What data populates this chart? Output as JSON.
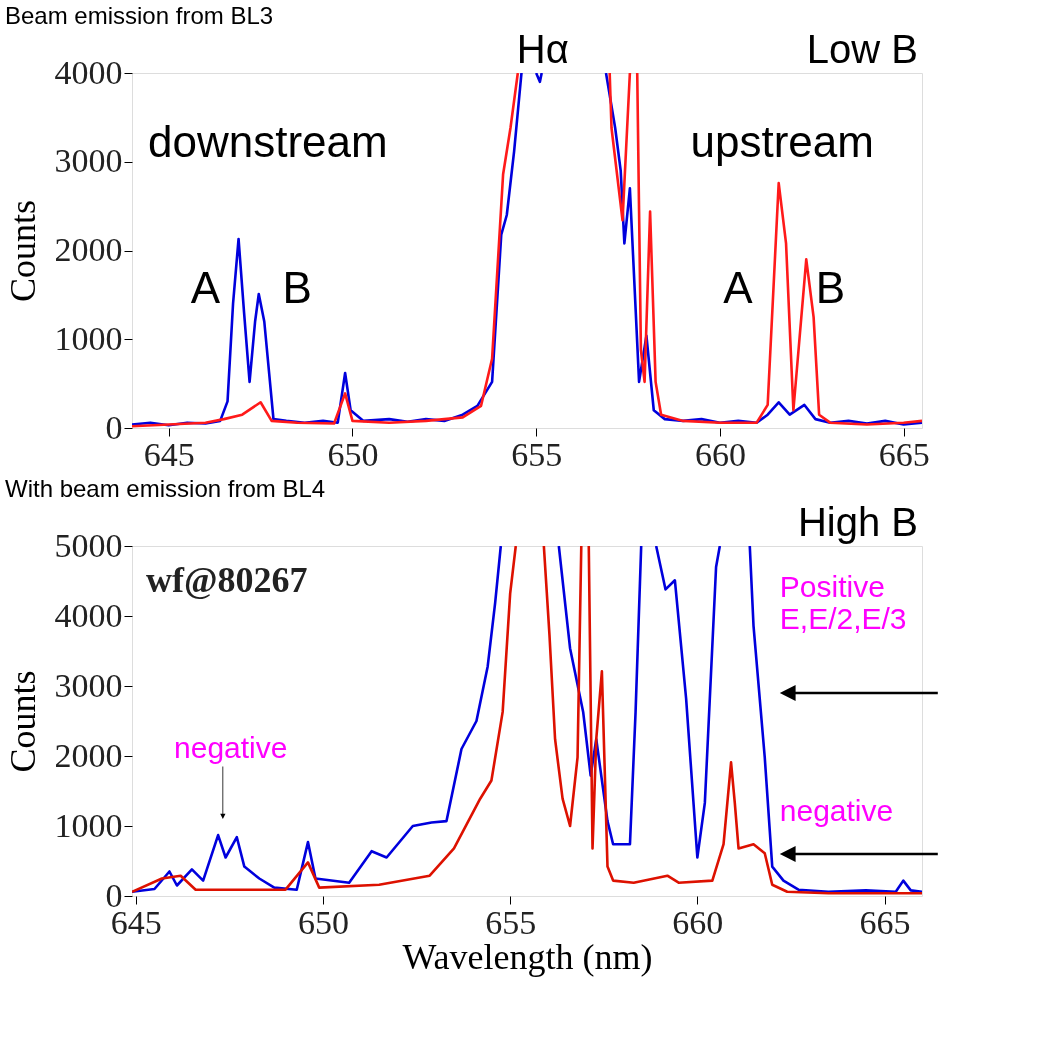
{
  "chart_data": [
    {
      "type": "line",
      "title": "Beam emission from BL3",
      "ylabel": "Counts",
      "xlim": [
        644,
        665.5
      ],
      "ylim": [
        0,
        4000
      ],
      "xticks": [
        645,
        650,
        655,
        660,
        665
      ],
      "yticks": [
        0,
        1000,
        2000,
        3000,
        4000
      ],
      "grid": false,
      "annotations": [
        "Hα",
        "Low B",
        "downstream",
        "upstream",
        "A",
        "B",
        "A",
        "B"
      ],
      "series": [
        {
          "color": "#0000dd",
          "x": [
            644.0,
            644.5,
            645.0,
            645.5,
            646.0,
            646.4,
            646.6,
            646.75,
            646.9,
            647.05,
            647.2,
            647.35,
            647.45,
            647.6,
            647.85,
            648.2,
            648.7,
            649.2,
            649.6,
            649.8,
            649.95,
            650.3,
            651.0,
            651.5,
            652.0,
            652.5,
            653.0,
            653.4,
            653.8,
            654.05,
            654.2,
            654.4,
            654.6,
            654.8,
            655.0,
            655.1,
            655.15,
            655.5,
            656.9,
            657.15,
            657.3,
            657.4,
            657.55,
            657.8,
            658.0,
            658.2,
            658.5,
            659.0,
            659.5,
            660.0,
            660.5,
            661.0,
            661.3,
            661.6,
            661.9,
            662.3,
            662.6,
            663.0,
            663.5,
            664.0,
            664.5,
            665.0,
            665.5
          ],
          "values": [
            40,
            60,
            30,
            60,
            50,
            80,
            300,
            1400,
            2130,
            1300,
            520,
            1200,
            1510,
            1200,
            100,
            80,
            60,
            80,
            60,
            620,
            200,
            80,
            100,
            70,
            100,
            80,
            150,
            250,
            520,
            2180,
            2400,
            3120,
            4000,
            null,
            4000,
            3900,
            4000,
            null,
            4000,
            3380,
            2900,
            2080,
            2700,
            520,
            1040,
            200,
            100,
            80,
            100,
            60,
            80,
            60,
            150,
            290,
            150,
            260,
            100,
            60,
            80,
            50,
            80,
            40,
            60
          ]
        },
        {
          "color": "#ff1a1a",
          "x": [
            644.0,
            645.0,
            646.0,
            646.5,
            647.0,
            647.5,
            647.8,
            648.5,
            649.5,
            649.8,
            650.0,
            651.0,
            652.0,
            653.0,
            653.5,
            653.8,
            654.1,
            654.3,
            654.5,
            655.0,
            657.0,
            657.05,
            657.35,
            657.55,
            657.6,
            657.75,
            657.8,
            657.85,
            657.95,
            658.1,
            658.25,
            658.4,
            659.0,
            660.0,
            661.0,
            661.3,
            661.6,
            661.8,
            662.0,
            662.35,
            662.55,
            662.7,
            663.0,
            664.0,
            665.0,
            665.5
          ],
          "values": [
            20,
            40,
            60,
            100,
            150,
            290,
            80,
            60,
            50,
            390,
            80,
            60,
            80,
            120,
            250,
            780,
            2860,
            3380,
            4000,
            null,
            4000,
            3380,
            2340,
            4000,
            null,
            4000,
            2440,
            880,
            520,
            2440,
            520,
            150,
            80,
            60,
            60,
            260,
            2760,
            2080,
            200,
            1900,
            1250,
            150,
            60,
            40,
            60,
            80
          ]
        }
      ]
    },
    {
      "type": "line",
      "title": "With beam emission from BL4",
      "subtitle": "wf@80267",
      "xlabel": "Wavelength (nm)",
      "ylabel": "Counts",
      "xlim": [
        644.9,
        666
      ],
      "ylim": [
        0,
        5000
      ],
      "xticks": [
        645,
        650,
        655,
        660,
        665
      ],
      "yticks": [
        0,
        1000,
        2000,
        3000,
        4000,
        5000
      ],
      "grid": false,
      "annotations": [
        "High B",
        "negative",
        "Positive\nE,E/2,E/3",
        "negative"
      ],
      "series": [
        {
          "color": "#0000dd",
          "x": [
            644.9,
            645.5,
            645.9,
            646.1,
            646.5,
            646.8,
            647.2,
            647.4,
            647.7,
            647.9,
            648.3,
            648.7,
            649.3,
            649.6,
            649.8,
            650.7,
            651.3,
            651.7,
            652.4,
            652.9,
            653.3,
            653.7,
            654.1,
            654.4,
            654.6,
            654.75,
            655.5,
            656.3,
            656.6,
            656.95,
            657.15,
            657.3,
            657.6,
            657.75,
            658.2,
            658.35,
            658.5,
            658.7,
            658.9,
            659.15,
            659.4,
            659.7,
            660.0,
            660.2,
            660.5,
            660.6,
            661.0,
            661.4,
            661.5,
            661.8,
            662.0,
            662.3,
            662.7,
            663.5,
            664.5,
            665.3,
            665.5,
            665.7,
            666.0
          ],
          "values": [
            60,
            100,
            350,
            150,
            380,
            220,
            870,
            550,
            840,
            420,
            250,
            120,
            90,
            770,
            250,
            190,
            640,
            550,
            1000,
            1050,
            1070,
            2100,
            2500,
            3280,
            4190,
            5000,
            null,
            5000,
            3540,
            2630,
            1720,
            2240,
            1070,
            740,
            740,
            2630,
            5000,
            null,
            5000,
            4380,
            4510,
            2820,
            550,
            1330,
            4700,
            5000,
            null,
            5000,
            3860,
            1980,
            420,
            220,
            90,
            60,
            80,
            60,
            220,
            80,
            60
          ]
        },
        {
          "color": "#dd1100",
          "x": [
            644.9,
            645.7,
            646.2,
            646.6,
            649.0,
            649.6,
            649.9,
            651.5,
            652.85,
            653.5,
            654.2,
            654.5,
            654.8,
            655.0,
            655.15,
            655.5,
            655.9,
            656.05,
            656.2,
            656.4,
            656.6,
            656.8,
            656.9,
            657.0,
            657.1,
            657.2,
            657.3,
            657.45,
            657.6,
            657.75,
            658.3,
            659.2,
            659.5,
            660.4,
            660.7,
            660.9,
            661.0,
            661.1,
            661.5,
            661.8,
            662.0,
            662.4,
            663.5,
            666.0
          ],
          "values": [
            60,
            250,
            290,
            90,
            90,
            480,
            120,
            160,
            290,
            680,
            1390,
            1650,
            2630,
            4320,
            5000,
            null,
            5000,
            3730,
            2240,
            1390,
            1000,
            1980,
            5000,
            null,
            5000,
            680,
            2240,
            3210,
            420,
            220,
            190,
            290,
            190,
            220,
            740,
            1910,
            1330,
            680,
            740,
            610,
            160,
            60,
            40,
            40
          ]
        }
      ]
    }
  ]
}
